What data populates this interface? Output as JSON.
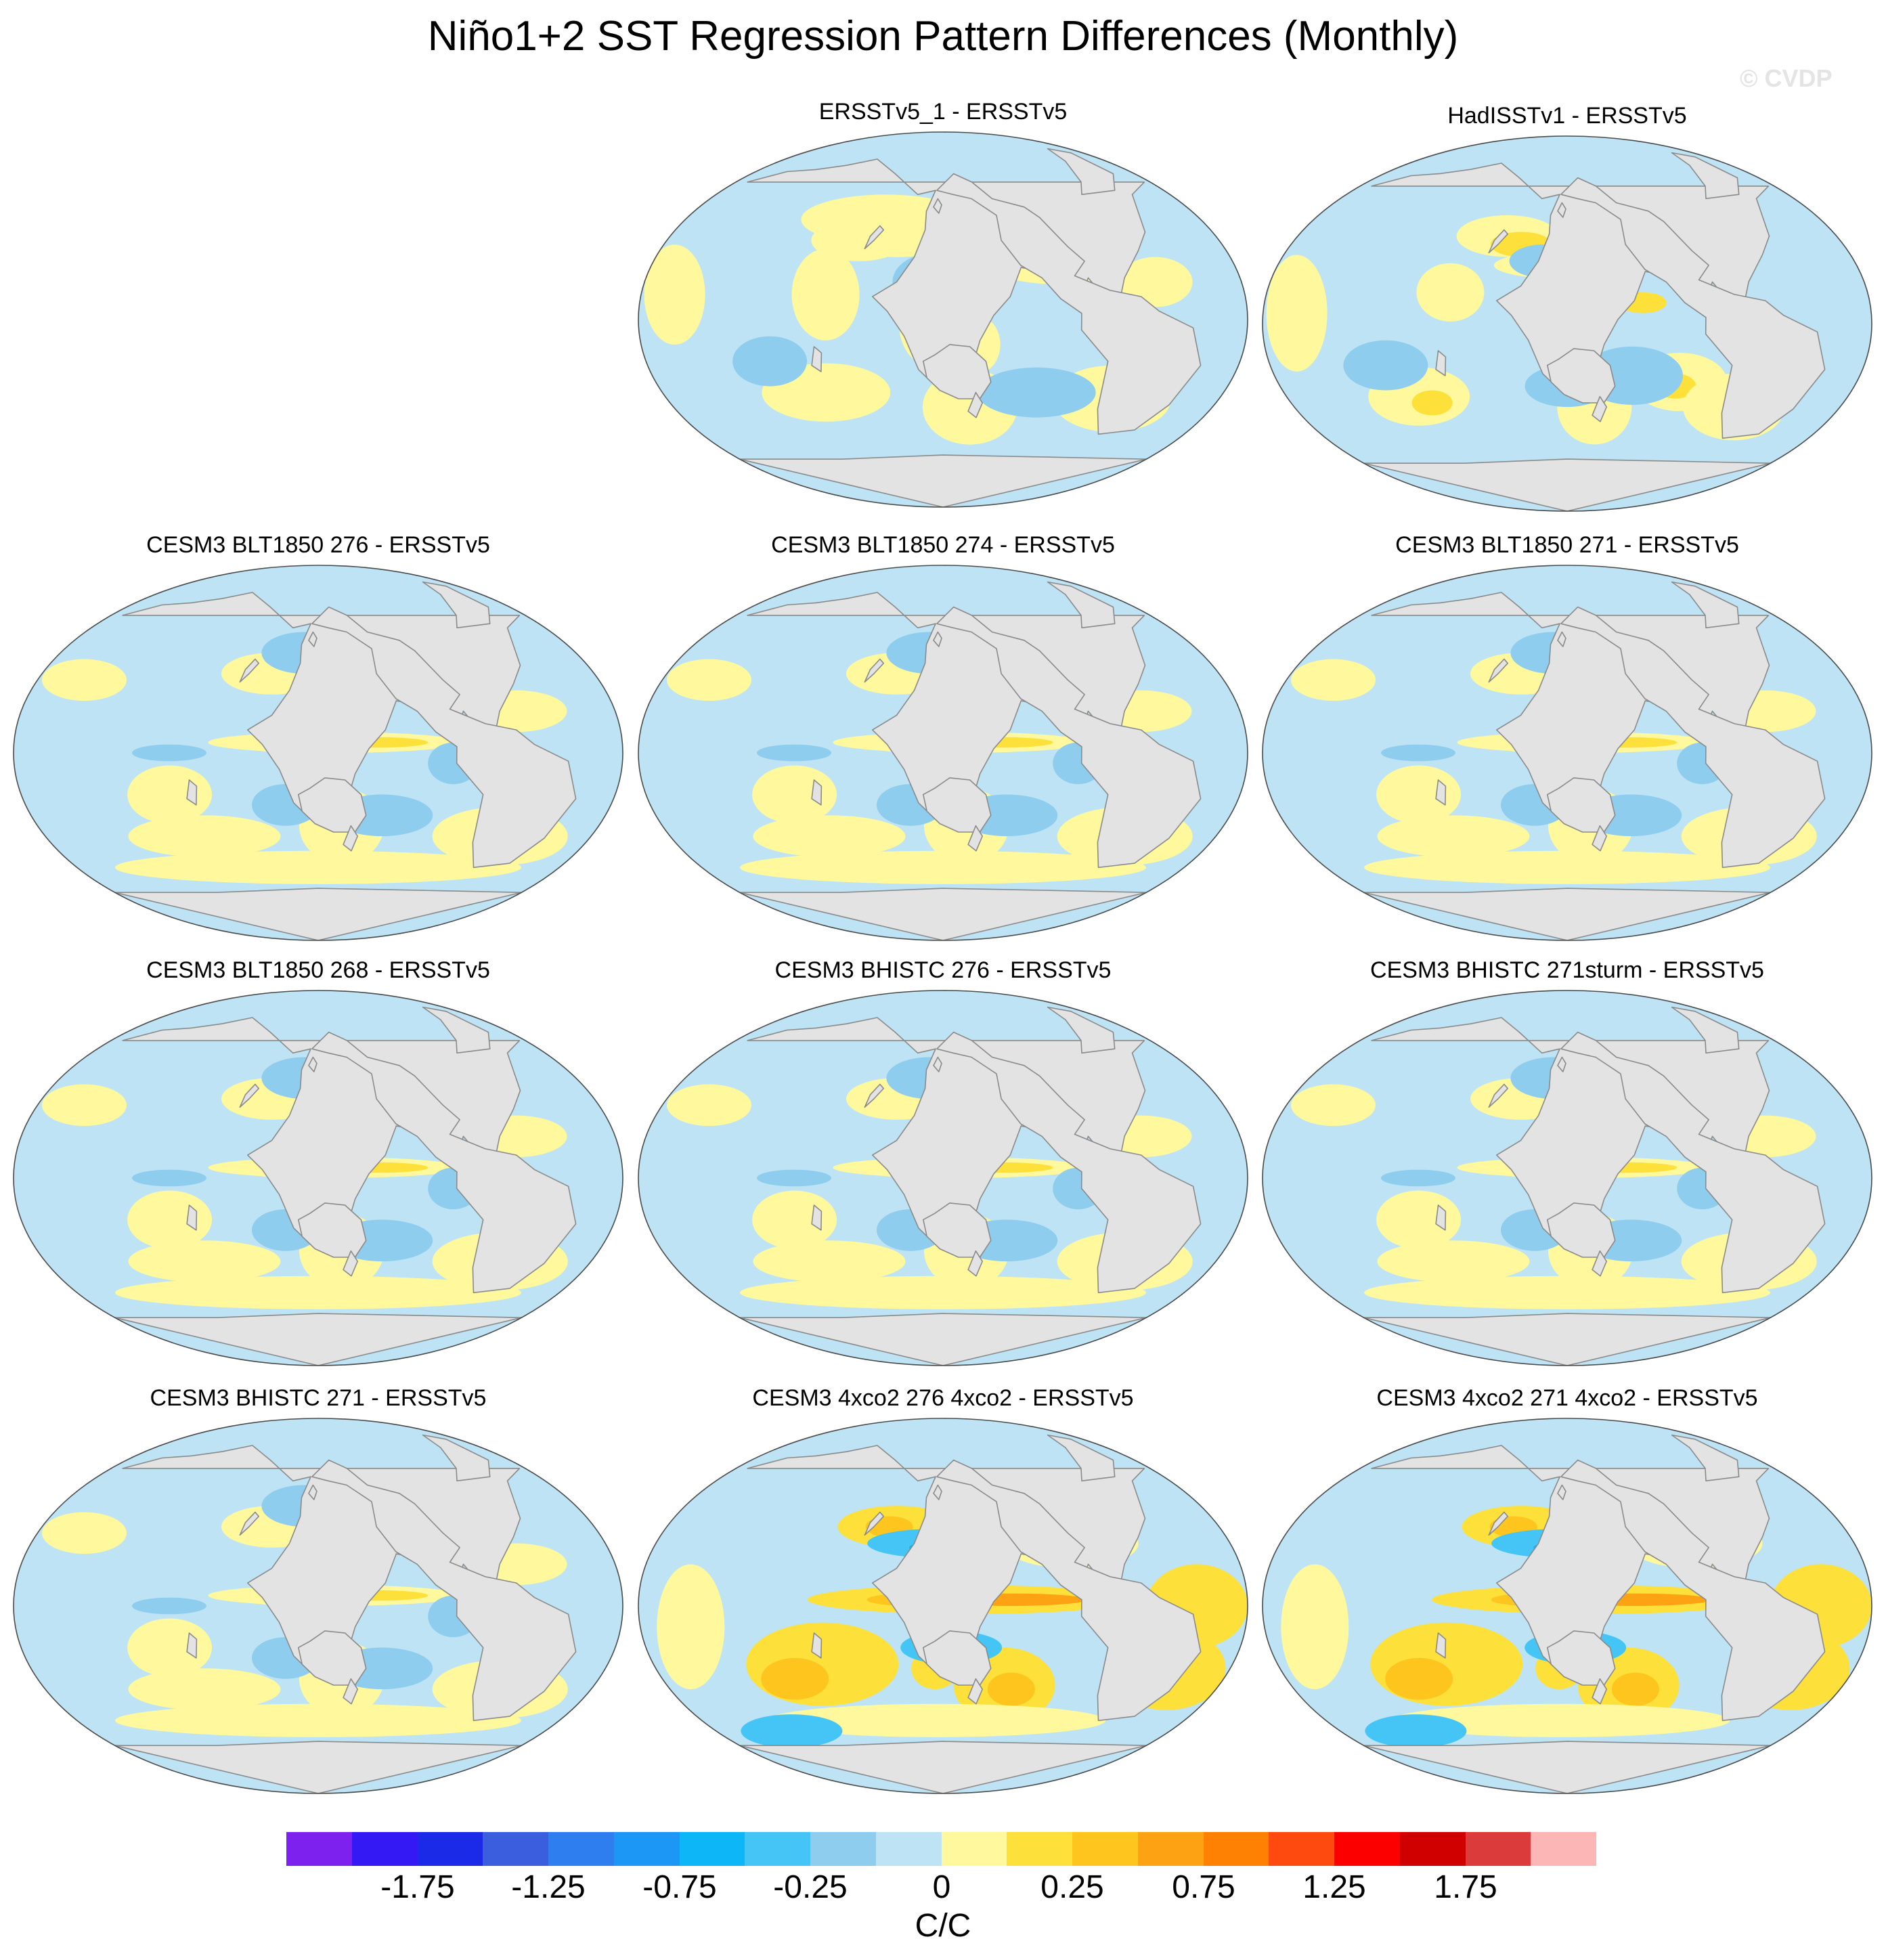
{
  "title": "Niño1+2 SST Regression Pattern Differences (Monthly)",
  "watermark": "© CVDP",
  "colors": {
    "land": "#e3e3e3",
    "coast": "#8a8a8a",
    "ocean_default": "#bde3f5"
  },
  "panels": [
    {
      "id": "p1",
      "title": "ERSSTv5_1 - ERSSTv5",
      "variant": "obs"
    },
    {
      "id": "p2",
      "title": "HadISSTv1 - ERSSTv5",
      "variant": "obs2"
    },
    {
      "id": "p3",
      "title": "CESM3 BLT1850 276 - ERSSTv5",
      "variant": "model"
    },
    {
      "id": "p4",
      "title": "CESM3 BLT1850 274 - ERSSTv5",
      "variant": "model"
    },
    {
      "id": "p5",
      "title": "CESM3 BLT1850 271 - ERSSTv5",
      "variant": "model"
    },
    {
      "id": "p6",
      "title": "CESM3 BLT1850 268 - ERSSTv5",
      "variant": "model"
    },
    {
      "id": "p7",
      "title": "CESM3 BHISTC 276 - ERSSTv5",
      "variant": "model"
    },
    {
      "id": "p8",
      "title": "CESM3 BHISTC 271sturm - ERSSTv5",
      "variant": "model"
    },
    {
      "id": "p9",
      "title": "CESM3 BHISTC 271 - ERSSTv5",
      "variant": "model"
    },
    {
      "id": "p10",
      "title": "CESM3 4xco2 276 4xco2 - ERSSTv5",
      "variant": "strong"
    },
    {
      "id": "p11",
      "title": "CESM3 4xco2 271 4xco2 - ERSSTv5",
      "variant": "strong"
    }
  ],
  "colorbar": {
    "colors": [
      "#7d22ee",
      "#3519f5",
      "#1a2ae6",
      "#3b5ede",
      "#2f7ef0",
      "#1d97f5",
      "#0db6f7",
      "#44c5f5",
      "#8ecdee",
      "#bde3f5",
      "#fff89d",
      "#fde03a",
      "#fdc51d",
      "#fda213",
      "#fe8104",
      "#fe4a0e",
      "#fc0000",
      "#d10000",
      "#dc3b3b",
      "#fdb6b6"
    ],
    "tick_labels": [
      "-1.75",
      "-1.25",
      "-0.75",
      "-0.25",
      "0",
      "0.25",
      "0.75",
      "1.25",
      "1.75"
    ],
    "units": "C/C"
  }
}
